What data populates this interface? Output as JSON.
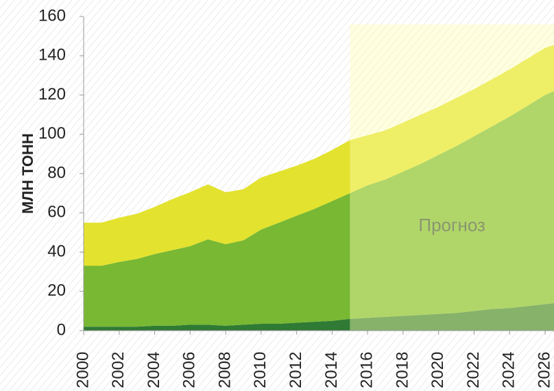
{
  "chart_data": {
    "type": "stacked_area",
    "y_label": "МЛН  ТОНН",
    "x": [
      2000,
      2001,
      2002,
      2003,
      2004,
      2005,
      2006,
      2007,
      2008,
      2009,
      2010,
      2011,
      2012,
      2013,
      2014,
      2015,
      2016,
      2017,
      2018,
      2019,
      2020,
      2021,
      2022,
      2023,
      2024,
      2025,
      2026,
      2027
    ],
    "series": [
      {
        "color": "#2f7a34",
        "values": [
          2,
          2,
          2,
          2,
          2.5,
          2.5,
          3,
          3,
          2.5,
          3,
          3.5,
          3.5,
          4,
          4.5,
          5,
          6,
          6.5,
          7,
          7.5,
          8,
          8.5,
          9,
          10,
          11,
          11.5,
          12.5,
          13.5,
          14.5
        ]
      },
      {
        "color": "#78b833",
        "values": [
          31,
          31,
          33,
          34.5,
          36.5,
          38.5,
          40,
          43.5,
          41.5,
          43,
          48,
          51.5,
          54.5,
          57.5,
          61,
          64,
          67.5,
          70,
          73.5,
          77,
          81,
          85,
          89,
          93,
          97.5,
          102,
          106.5,
          109.5
        ]
      },
      {
        "color": "#e3e22f",
        "values": [
          22,
          22,
          22.5,
          23,
          24,
          26,
          27.5,
          28,
          26.5,
          26,
          26.5,
          26,
          25.5,
          25.5,
          26,
          27,
          25.5,
          25,
          25,
          25,
          24.5,
          24.5,
          24,
          24,
          24,
          24,
          24,
          23
        ]
      }
    ],
    "xlim": [
      2000,
      2026.5
    ],
    "xticks": [
      2000,
      2002,
      2004,
      2006,
      2008,
      2010,
      2012,
      2014,
      2016,
      2018,
      2020,
      2022,
      2024,
      2026
    ],
    "ylim": [
      0,
      160
    ],
    "yticks": [
      0,
      20,
      40,
      60,
      80,
      100,
      120,
      140,
      160
    ],
    "forecast": {
      "label": "Прогноз",
      "start": 2015,
      "top": 156
    }
  }
}
